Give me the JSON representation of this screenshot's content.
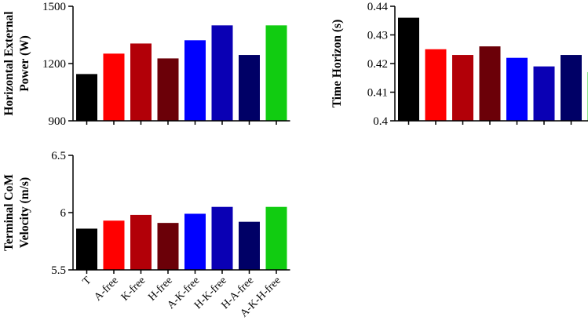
{
  "colors": {
    "T": "#000000",
    "A-free": "#ff0000",
    "K-free": "#b20008",
    "H-free": "#6b0008",
    "A-K-free": "#0000ff",
    "H-K-free": "#0a00b4",
    "H-A-free": "#000066",
    "A-K-H-free": "#11cc11"
  },
  "chart_data": [
    {
      "type": "bar",
      "categories": [
        "T",
        "A-free",
        "K-free",
        "H-free",
        "A-K-free",
        "H-K-free",
        "H-A-free",
        "A-K-H-free"
      ],
      "values": [
        1145,
        1252,
        1305,
        1227,
        1322,
        1400,
        1245,
        1400
      ],
      "ylabel": [
        "Horizontal External",
        "Power (W)"
      ],
      "ylim": [
        900,
        1500
      ],
      "yticks": [
        900,
        1200,
        1500
      ],
      "ytick_labels": [
        "900",
        "1200",
        "1500"
      ],
      "grid": false,
      "legend": "none"
    },
    {
      "type": "bar",
      "categories": [
        "T",
        "A-free",
        "K-free",
        "H-free",
        "A-K-free",
        "H-K-free",
        "H-A-free",
        "A-K-H-free"
      ],
      "values": [
        0.436,
        0.425,
        0.423,
        0.426,
        0.422,
        0.419,
        0.423,
        0.417
      ],
      "ylabel": [
        "Time Horizon (s)"
      ],
      "ylim": [
        0.4,
        0.44
      ],
      "yticks": [
        0.4,
        0.41,
        0.42,
        0.43,
        0.44
      ],
      "ytick_labels": [
        "0.4",
        "0.41",
        "0.42",
        "0.43",
        "0.44"
      ],
      "grid": false,
      "legend": "none"
    },
    {
      "type": "bar",
      "categories": [
        "T",
        "A-free",
        "K-free",
        "H-free",
        "A-K-free",
        "H-K-free",
        "H-A-free",
        "A-K-H-free"
      ],
      "values": [
        5.86,
        5.93,
        5.98,
        5.91,
        5.99,
        6.05,
        5.92,
        6.05
      ],
      "ylabel": [
        "Terminal CoM",
        "Velocity (m/s)"
      ],
      "ylim": [
        5.5,
        6.5
      ],
      "yticks": [
        5.5,
        6,
        6.5
      ],
      "ytick_labels": [
        "5.5",
        "6",
        "6.5"
      ],
      "xtick_labels": [
        "T",
        "A-free",
        "K-free",
        "H-free",
        "A-K-free",
        "H-K-free",
        "H-A-free",
        "A-K-H-free"
      ],
      "grid": false,
      "legend": "none"
    }
  ]
}
